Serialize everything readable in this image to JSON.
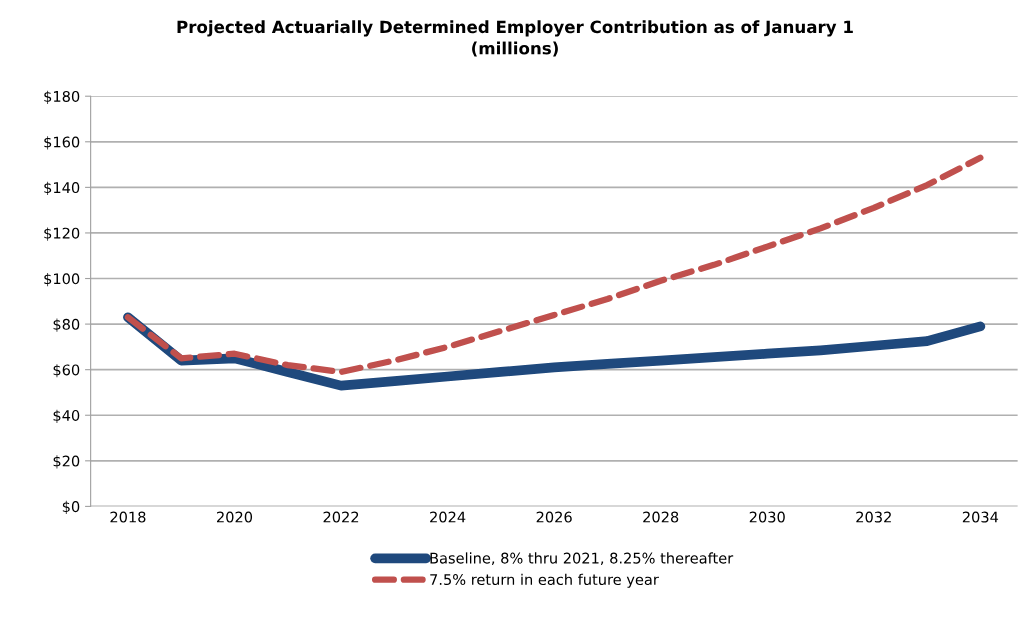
{
  "chart_data": {
    "type": "line",
    "title": "Projected Actuarially Determined Employer Contribution as of January 1\n(millions)",
    "categories": [
      "2018",
      null,
      "2020",
      null,
      "2022",
      null,
      "2024",
      null,
      "2026",
      null,
      "2028",
      null,
      "2030",
      null,
      "2032",
      null,
      "2034"
    ],
    "series": [
      {
        "name": "Baseline, 8% thru 2021, 8.25% thereafter",
        "color": "#1f497d",
        "line_style": "solid",
        "values": [
          83,
          64,
          65,
          59,
          53,
          55,
          57,
          59,
          61,
          62.5,
          64,
          65.5,
          67,
          68.5,
          70.5,
          72.5,
          79
        ]
      },
      {
        "name": "7.5% return in each future year",
        "color": "#c0504d",
        "line_style": "dashed",
        "values": [
          83,
          65,
          67,
          62,
          59,
          64,
          70,
          77,
          84,
          91,
          99,
          106,
          114,
          122,
          131,
          141,
          153
        ]
      }
    ],
    "ylim": [
      0,
      180
    ],
    "yticks": [
      {
        "value": 0,
        "label": "$0"
      },
      {
        "value": 20,
        "label": "$20"
      },
      {
        "value": 40,
        "label": "$40"
      },
      {
        "value": 60,
        "label": "$60"
      },
      {
        "value": 80,
        "label": "$80"
      },
      {
        "value": 100,
        "label": "$100"
      },
      {
        "value": 120,
        "label": "$120"
      },
      {
        "value": 140,
        "label": "$140"
      },
      {
        "value": 160,
        "label": "$160"
      },
      {
        "value": 180,
        "label": "$180"
      }
    ],
    "grid": "y",
    "legend": "bottom",
    "marker": "none"
  }
}
